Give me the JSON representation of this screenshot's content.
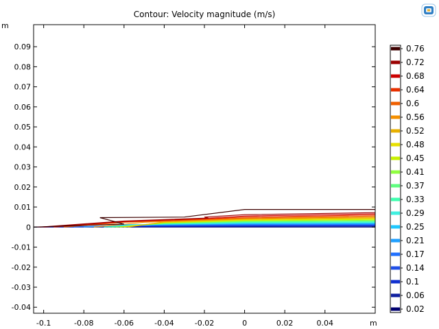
{
  "plot": {
    "title": "Contour: Velocity magnitude (m/s)",
    "x_unit": "m",
    "y_unit": "m"
  },
  "toolbar": {
    "icon": "comsol-logo-icon"
  },
  "chart_data": {
    "type": "contour",
    "title": "Contour: Velocity magnitude (m/s)",
    "xlabel": "m",
    "ylabel": "m",
    "xlim": [
      -0.105,
      0.065
    ],
    "ylim": [
      -0.043,
      0.101
    ],
    "x_ticks": [
      -0.1,
      -0.08,
      -0.06,
      -0.04,
      -0.02,
      0,
      0.02,
      0.04
    ],
    "x_tick_labels": [
      "-0.1",
      "-0.08",
      "-0.06",
      "-0.04",
      "-0.02",
      "0",
      "0.02",
      "0.04"
    ],
    "y_ticks": [
      0.09,
      0.08,
      0.07,
      0.06,
      0.05,
      0.04,
      0.03,
      0.02,
      0.01,
      0,
      -0.01,
      -0.02,
      -0.03,
      -0.04
    ],
    "y_tick_labels": [
      "0.09",
      "0.08",
      "0.07",
      "0.06",
      "0.05",
      "0.04",
      "0.03",
      "0.02",
      "0.01",
      "0",
      "-0.01",
      "-0.02",
      "-0.03",
      "-0.04"
    ],
    "grid": false,
    "legend": {
      "placement": "right",
      "levels": [
        0.76,
        0.72,
        0.68,
        0.64,
        0.6,
        0.56,
        0.52,
        0.48,
        0.45,
        0.41,
        0.37,
        0.33,
        0.29,
        0.25,
        0.21,
        0.17,
        0.14,
        0.1,
        0.06,
        0.02
      ],
      "labels": [
        "0.76",
        "0.72",
        "0.68",
        "0.64",
        "0.6",
        "0.56",
        "0.52",
        "0.48",
        "0.45",
        "0.41",
        "0.37",
        "0.33",
        "0.29",
        "0.25",
        "0.21",
        "0.17",
        "0.14",
        "0.1",
        "0.06",
        "0.02"
      ],
      "colors": [
        "#3d0000",
        "#9b0000",
        "#cc0000",
        "#e83000",
        "#f06000",
        "#f59000",
        "#e8b000",
        "#e8e000",
        "#c8f000",
        "#90ff40",
        "#60ff80",
        "#40ffb0",
        "#40f0e0",
        "#20c8ff",
        "#20a0ff",
        "#2070ff",
        "#2050e8",
        "#1030d0",
        "#1020a0",
        "#000070"
      ]
    },
    "contour_lines": [
      {
        "level": 0.02,
        "points": [
          [
            -0.105,
            0.0
          ],
          [
            0.065,
            0.0
          ]
        ]
      },
      {
        "level": 0.06,
        "points": [
          [
            -0.1,
            0.0
          ],
          [
            -0.06,
            0.0002
          ],
          [
            0.0,
            0.0003
          ],
          [
            0.065,
            0.0004
          ]
        ]
      },
      {
        "level": 0.1,
        "points": [
          [
            -0.095,
            0.0
          ],
          [
            -0.06,
            0.0004
          ],
          [
            0.0,
            0.0006
          ],
          [
            0.065,
            0.0007
          ]
        ]
      },
      {
        "level": 0.14,
        "points": [
          [
            -0.09,
            0.0
          ],
          [
            -0.06,
            0.0006
          ],
          [
            0.0,
            0.0009
          ],
          [
            0.065,
            0.001
          ]
        ]
      },
      {
        "level": 0.17,
        "points": [
          [
            -0.085,
            0.0
          ],
          [
            -0.06,
            0.0008
          ],
          [
            0.0,
            0.0012
          ],
          [
            0.065,
            0.0013
          ]
        ]
      },
      {
        "level": 0.21,
        "points": [
          [
            -0.08,
            0.0
          ],
          [
            -0.06,
            0.001
          ],
          [
            0.0,
            0.0015
          ],
          [
            0.065,
            0.0016
          ]
        ]
      },
      {
        "level": 0.25,
        "points": [
          [
            -0.075,
            0.0
          ],
          [
            -0.06,
            0.0012
          ],
          [
            0.0,
            0.0018
          ],
          [
            0.065,
            0.002
          ]
        ]
      },
      {
        "level": 0.29,
        "points": [
          [
            -0.07,
            0.0
          ],
          [
            -0.05,
            0.0013
          ],
          [
            0.0,
            0.0021
          ],
          [
            0.065,
            0.0023
          ]
        ]
      },
      {
        "level": 0.33,
        "points": [
          [
            -0.068,
            0.0
          ],
          [
            -0.04,
            0.0016
          ],
          [
            0.0,
            0.0024
          ],
          [
            0.065,
            0.0026
          ]
        ]
      },
      {
        "level": 0.37,
        "points": [
          [
            -0.066,
            0.0
          ],
          [
            -0.04,
            0.0018
          ],
          [
            0.0,
            0.0027
          ],
          [
            0.065,
            0.003
          ]
        ]
      },
      {
        "level": 0.41,
        "points": [
          [
            -0.064,
            0.0
          ],
          [
            -0.04,
            0.002
          ],
          [
            0.0,
            0.003
          ],
          [
            0.065,
            0.0034
          ]
        ]
      },
      {
        "level": 0.45,
        "points": [
          [
            -0.062,
            0.0
          ],
          [
            -0.04,
            0.0022
          ],
          [
            0.0,
            0.0033
          ],
          [
            0.065,
            0.0038
          ]
        ]
      },
      {
        "level": 0.48,
        "points": [
          [
            -0.06,
            0.0
          ],
          [
            -0.04,
            0.0024
          ],
          [
            0.0,
            0.0036
          ],
          [
            0.065,
            0.0042
          ]
        ]
      },
      {
        "level": 0.52,
        "points": [
          [
            -0.058,
            0.0
          ],
          [
            -0.04,
            0.0026
          ],
          [
            0.0,
            0.0039
          ],
          [
            0.065,
            0.0046
          ]
        ]
      },
      {
        "level": 0.56,
        "points": [
          [
            -0.075,
            0.0
          ],
          [
            -0.05,
            0.0024
          ],
          [
            -0.02,
            0.0035
          ],
          [
            0.0,
            0.0042
          ],
          [
            0.065,
            0.005
          ]
        ]
      },
      {
        "level": 0.6,
        "points": [
          [
            -0.09,
            0.0
          ],
          [
            -0.06,
            0.0024
          ],
          [
            -0.02,
            0.0038
          ],
          [
            0.0,
            0.0045
          ],
          [
            0.065,
            0.0055
          ]
        ]
      },
      {
        "level": 0.64,
        "points": [
          [
            -0.095,
            0.0
          ],
          [
            -0.06,
            0.0026
          ],
          [
            -0.02,
            0.004
          ],
          [
            0.0,
            0.005
          ],
          [
            0.065,
            0.006
          ]
        ]
      },
      {
        "level": 0.68,
        "points": [
          [
            -0.1,
            0.0
          ],
          [
            -0.06,
            0.0028
          ],
          [
            -0.02,
            0.0043
          ],
          [
            0.0,
            0.0055
          ],
          [
            0.065,
            0.0066
          ]
        ]
      },
      {
        "level": 0.72,
        "points": [
          [
            -0.102,
            0.0
          ],
          [
            -0.06,
            0.003
          ],
          [
            -0.018,
            0.0045
          ],
          [
            -0.02,
            0.005
          ],
          [
            0.0,
            0.0062
          ],
          [
            0.065,
            0.0072
          ]
        ]
      },
      {
        "level": 0.76,
        "points": [
          [
            -0.105,
            0.0
          ],
          [
            -0.06,
            0.0015
          ],
          [
            -0.072,
            0.0047
          ],
          [
            -0.03,
            0.005
          ],
          [
            0.0,
            0.0088
          ],
          [
            0.065,
            0.0088
          ]
        ]
      }
    ]
  }
}
